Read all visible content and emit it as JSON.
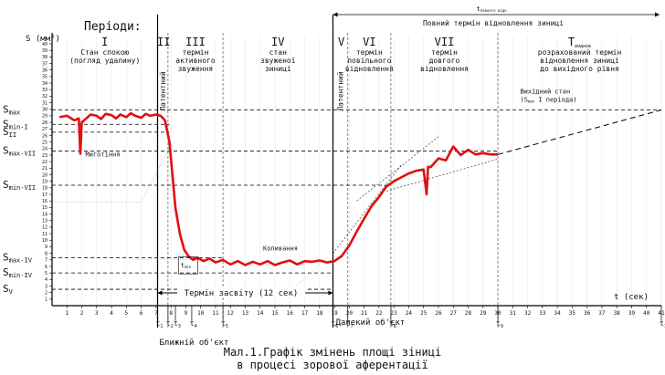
{
  "chart_data": {
    "type": "line",
    "title": "Мал.1.Графік змінень площі зіниці",
    "subtitle": "в процесі зорової аферентації",
    "ylabel": "S (мм²)",
    "xlabel": "t (сек)",
    "xlim": [
      0,
      41
    ],
    "ylim": [
      0,
      40
    ],
    "x_ticks": [
      1,
      2,
      3,
      4,
      5,
      6,
      7,
      8,
      9,
      10,
      11,
      12,
      13,
      14,
      15,
      16,
      17,
      18,
      19,
      20,
      21,
      22,
      23,
      24,
      25,
      26,
      27,
      28,
      29,
      30,
      31,
      32,
      33,
      34,
      35,
      36,
      37,
      38,
      39,
      40,
      41
    ],
    "y_ticks": [
      1,
      2,
      3,
      4,
      5,
      6,
      7,
      8,
      9,
      10,
      11,
      12,
      13,
      14,
      15,
      16,
      17,
      18,
      19,
      20,
      21,
      22,
      23,
      24,
      25,
      26,
      27,
      28,
      29,
      30,
      31,
      32,
      33,
      34,
      35,
      36,
      37,
      38,
      39,
      40
    ],
    "series": [
      {
        "color": "#e01010",
        "style": "solid",
        "x": [
          0.5,
          1.0,
          1.5,
          1.8,
          1.9,
          2.0,
          2.3,
          2.6,
          3.0,
          3.3,
          3.6,
          4.0,
          4.3,
          4.6,
          5.0,
          5.3,
          5.6,
          6.0,
          6.3,
          6.6,
          7.0,
          7.3,
          7.6,
          7.9,
          8.1,
          8.3,
          8.6,
          8.9,
          9.2,
          9.5,
          9.8,
          10.2,
          10.6,
          11.0,
          11.5,
          12.0,
          12.5,
          13.0,
          13.5,
          14.0,
          14.5,
          15.0,
          15.5,
          16.0,
          16.5,
          17.0,
          17.5,
          18.0,
          18.5,
          19.0,
          19.5,
          20.0,
          20.5,
          21.0,
          21.5,
          22.0,
          22.5,
          23.0,
          23.5,
          24.0,
          24.5,
          25.0,
          25.2,
          25.3,
          25.5,
          26.0,
          26.5,
          27.0,
          27.5,
          28.0,
          28.5,
          29.0,
          29.5,
          30.0
        ],
        "y": [
          28.8,
          29.0,
          28.3,
          28.6,
          23.2,
          28.0,
          28.6,
          29.2,
          29.0,
          28.5,
          29.3,
          29.1,
          28.6,
          29.2,
          28.8,
          29.4,
          29.0,
          28.7,
          29.3,
          29.0,
          29.2,
          29.0,
          28.3,
          25.0,
          20.0,
          15.0,
          11.0,
          8.5,
          7.5,
          7.0,
          7.3,
          6.8,
          7.2,
          6.6,
          7.0,
          6.3,
          6.8,
          6.2,
          6.7,
          6.3,
          6.8,
          6.2,
          6.6,
          6.9,
          6.3,
          6.8,
          6.7,
          6.9,
          6.6,
          6.8,
          7.6,
          9.2,
          11.3,
          13.3,
          15.2,
          16.6,
          18.2,
          19.0,
          19.6,
          20.2,
          20.6,
          20.8,
          17.0,
          21.2,
          21.2,
          22.5,
          22.2,
          24.3,
          23.0,
          23.8,
          23.1,
          23.3,
          23.1,
          23.1
        ]
      },
      {
        "color": "#000000",
        "style": "dashed",
        "x": [
          30,
          41
        ],
        "y": [
          23.1,
          29.9
        ]
      }
    ],
    "y_markers": [
      {
        "label": "S",
        "sub": "max",
        "value": 29.9
      },
      {
        "label": "S",
        "sub": "min-I",
        "value": 27.7
      },
      {
        "label": "S",
        "sub": "II",
        "value": 26.5
      },
      {
        "label": "S",
        "sub": "max-VII",
        "value": 23.6
      },
      {
        "label": "S",
        "sub": "min-VII",
        "value": 18.4
      },
      {
        "label": "S",
        "sub": "max-IV",
        "value": 7.3
      },
      {
        "label": "S",
        "sub": "min-IV",
        "value": 5.0
      },
      {
        "label": "S",
        "sub": "V",
        "value": 2.5
      }
    ],
    "time_markers": [
      {
        "label": "t",
        "sub": "1",
        "x": 7.1
      },
      {
        "label": "t",
        "sub": "2",
        "x": 7.8
      },
      {
        "label": "t",
        "sub": "3",
        "x": 8.3
      },
      {
        "label": "t",
        "sub": "4",
        "x": 9.4
      },
      {
        "label": "t",
        "sub": "5",
        "x": 11.5
      },
      {
        "label": "t",
        "sub": "6",
        "x": 18.9
      },
      {
        "label": "t",
        "sub": "7",
        "x": 19.9
      },
      {
        "label": "t",
        "sub": "8",
        "x": 22.8
      },
      {
        "label": "t",
        "sub": "9",
        "x": 30.0
      },
      {
        "label": "t",
        "sub": "10",
        "x": 41.0
      }
    ],
    "phases": [
      {
        "num": "I",
        "desc": [
          "Стан спокою",
          "(погляд удалину)"
        ],
        "x_start": 0,
        "x_end": 7.1
      },
      {
        "num": "II",
        "desc": [
          "Латентний"
        ],
        "x_start": 7.1,
        "x_end": 7.8
      },
      {
        "num": "III",
        "desc": [
          "термін",
          "активного",
          "звуження"
        ],
        "x_start": 7.8,
        "x_end": 11.5
      },
      {
        "num": "IV",
        "desc": [
          "стан",
          "звуженої",
          "зиниці"
        ],
        "x_start": 11.5,
        "x_end": 18.9
      },
      {
        "num": "V",
        "desc": [
          "Латентний"
        ],
        "x_start": 18.9,
        "x_end": 19.9
      },
      {
        "num": "VI",
        "desc": [
          "термін",
          "повільного",
          "відновлення"
        ],
        "x_start": 19.9,
        "x_end": 22.8
      },
      {
        "num": "VII",
        "desc": [
          "термін",
          "довгого",
          "відновлення"
        ],
        "x_start": 22.8,
        "x_end": 30.0
      },
      {
        "num": "T",
        "sub": "виднов",
        "desc": [
          "розрахований термін",
          "відновлення зиниці",
          "до вихідного рівня"
        ],
        "x_start": 30.0,
        "x_end": 41.0
      }
    ],
    "annotations": {
      "blink": "Миготіння",
      "oscillations": "Коливання",
      "exposure": "Термін засвіту (12 сек)",
      "near_object": "Ближній об'єкт",
      "far_object": "Далекий об'єкт",
      "initial_state": [
        "Вихідний стан",
        "(S",
        "max",
        " I періода)"
      ],
      "full_recovery_t": "t",
      "full_recovery_sub": "повного відн",
      "full_recovery_text": "Повний термін відновлення зиниці",
      "t_min": "t",
      "t_min_sub": "min",
      "periods": "Періоди:"
    }
  }
}
